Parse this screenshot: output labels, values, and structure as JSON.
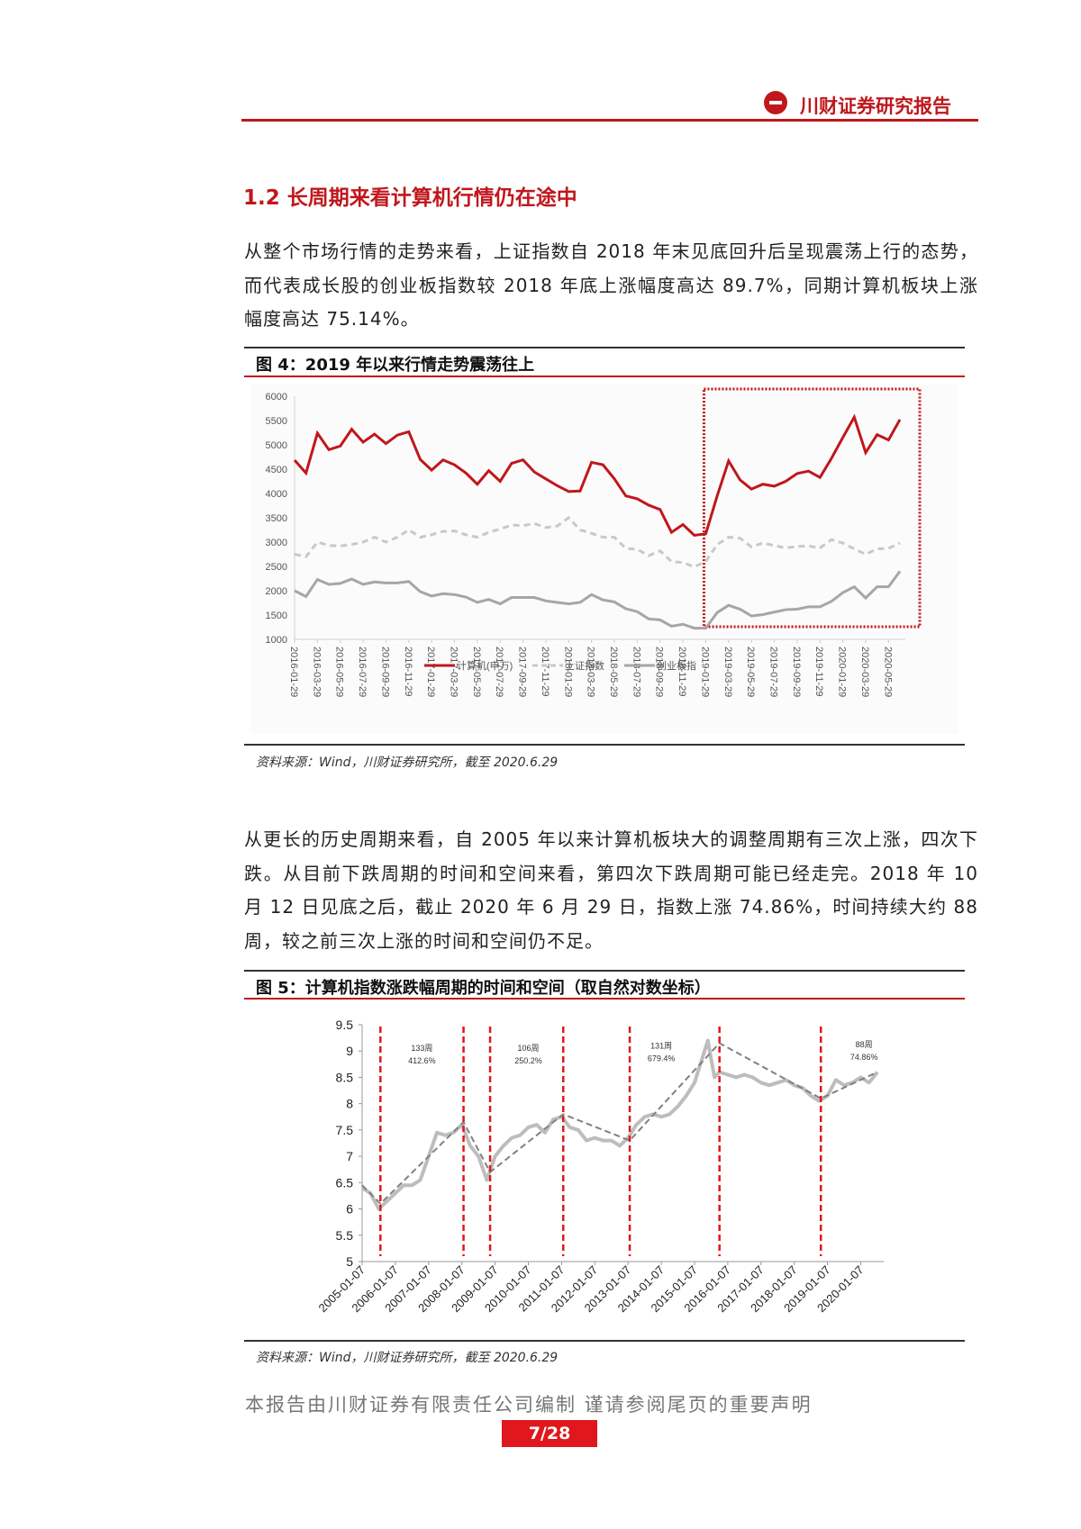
{
  "header": {
    "brand": "川财证券研究报告",
    "logo": "chuancai-logo"
  },
  "section_title": "1.2  长周期来看计算机行情仍在途中",
  "paragraph1": "从整个市场行情的走势来看，上证指数自 2018 年末见底回升后呈现震荡上行的态势，而代表成长股的创业板指数较 2018 年底上涨幅度高达 89.7%，同期计算机板块上涨幅度高达 75.14%。",
  "figure4": {
    "title": "图 4：2019 年以来行情走势震荡往上",
    "source": "资料来源：Wind，川财证券研究所，截至 2020.6.29"
  },
  "paragraph2": "从更长的历史周期来看，自 2005 年以来计算机板块大的调整周期有三次上涨，四次下跌。从目前下跌周期的时间和空间来看，第四次下跌周期可能已经走完。2018 年 10 月 12 日见底之后，截止 2020 年 6 月 29 日，指数上涨 74.86%，时间持续大约 88 周，较之前三次上涨的时间和空间仍不足。",
  "figure5": {
    "title": "图 5：计算机指数涨跌幅周期的时间和空间（取自然对数坐标）",
    "source": "资料来源：Wind，川财证券研究所，截至 2020.6.29"
  },
  "footer": {
    "disclaimer": "本报告由川财证券有限责任公司编制  谨请参阅尾页的重要声明",
    "page": "7/28"
  },
  "chart_data": [
    {
      "type": "line",
      "ylim": [
        1000,
        6000
      ],
      "yticks": [
        "1000",
        "1500",
        "2000",
        "2500",
        "3000",
        "3500",
        "4000",
        "4500",
        "5000",
        "5500",
        "6000"
      ],
      "xticks": [
        "2016-01-29",
        "2016-03-29",
        "2016-05-29",
        "2016-07-29",
        "2016-09-29",
        "2016-11-29",
        "2017-01-29",
        "2017-03-29",
        "2017-05-29",
        "2017-07-29",
        "2017-09-29",
        "2017-11-29",
        "2018-01-29",
        "2018-03-29",
        "2018-05-29",
        "2018-07-29",
        "2018-09-29",
        "2018-11-29",
        "2019-01-29",
        "2019-03-29",
        "2019-05-29",
        "2019-07-29",
        "2019-09-29",
        "2019-11-29",
        "2020-01-29",
        "2020-03-29",
        "2020-05-29"
      ],
      "x_start": "2016-01",
      "x_end": "2020-06",
      "frequency": "monthly",
      "grid": false,
      "legend": "bottom",
      "highlight_box": {
        "from": "2019-01",
        "to": "2020-06",
        "color": "#c0171c"
      },
      "series": [
        {
          "name": "计算机(申万)",
          "color": "#c0171c",
          "style": "solid",
          "values": [
            4685,
            4420,
            5240,
            4900,
            4975,
            5320,
            5055,
            5220,
            5025,
            5200,
            5270,
            4700,
            4480,
            4690,
            4590,
            4420,
            4190,
            4470,
            4250,
            4620,
            4690,
            4440,
            4300,
            4160,
            4040,
            4050,
            4640,
            4590,
            4300,
            3950,
            3890,
            3760,
            3670,
            3200,
            3360,
            3140,
            3170,
            3950,
            4670,
            4280,
            4090,
            4190,
            4150,
            4250,
            4410,
            4460,
            4330,
            4720,
            5150,
            5570,
            4840,
            5210,
            5100,
            5520
          ]
        },
        {
          "name": "上证指数",
          "color": "#c8c8c8",
          "style": "dashed",
          "values": [
            2750,
            2700,
            3000,
            2930,
            2920,
            2950,
            3000,
            3100,
            3000,
            3100,
            3250,
            3100,
            3150,
            3220,
            3230,
            3150,
            3100,
            3200,
            3270,
            3350,
            3340,
            3380,
            3300,
            3330,
            3500,
            3250,
            3180,
            3100,
            3100,
            2870,
            2850,
            2720,
            2820,
            2600,
            2580,
            2490,
            2600,
            2950,
            3100,
            3080,
            2900,
            2980,
            2930,
            2880,
            2910,
            2920,
            2880,
            3050,
            2980,
            2860,
            2750,
            2860,
            2870,
            2980
          ]
        },
        {
          "name": "创业板指",
          "color": "#a6a6a6",
          "style": "solid",
          "values": [
            2000,
            1880,
            2230,
            2130,
            2150,
            2240,
            2130,
            2180,
            2160,
            2160,
            2190,
            1980,
            1890,
            1940,
            1920,
            1870,
            1760,
            1820,
            1730,
            1860,
            1860,
            1860,
            1790,
            1760,
            1730,
            1760,
            1920,
            1810,
            1770,
            1630,
            1570,
            1420,
            1400,
            1270,
            1310,
            1230,
            1230,
            1550,
            1700,
            1620,
            1480,
            1510,
            1560,
            1610,
            1620,
            1670,
            1670,
            1780,
            1960,
            2080,
            1850,
            2080,
            2080,
            2400
          ]
        }
      ]
    },
    {
      "type": "line",
      "ylim": [
        5,
        9.5
      ],
      "yticks": [
        "5",
        "5.5",
        "6",
        "6.5",
        "7",
        "7.5",
        "8",
        "8.5",
        "9",
        "9.5"
      ],
      "xticks": [
        "2005-01-07",
        "2006-01-07",
        "2007-01-07",
        "2008-01-07",
        "2009-01-07",
        "2010-01-07",
        "2011-01-07",
        "2012-01-07",
        "2013-01-07",
        "2014-01-07",
        "2015-01-07",
        "2016-01-07",
        "2017-01-07",
        "2018-01-07",
        "2019-01-07",
        "2020-01-07"
      ],
      "grid": false,
      "series": [
        {
          "color": "#bdbdbd",
          "style": "solid",
          "x": [
            2005.0,
            2005.25,
            2005.5,
            2005.75,
            2006.0,
            2006.25,
            2006.5,
            2006.75,
            2007.0,
            2007.25,
            2007.5,
            2007.75,
            2008.0,
            2008.25,
            2008.5,
            2008.75,
            2009.0,
            2009.25,
            2009.5,
            2009.75,
            2010.0,
            2010.25,
            2010.5,
            2010.75,
            2011.0,
            2011.25,
            2011.5,
            2011.75,
            2012.0,
            2012.25,
            2012.5,
            2012.75,
            2013.0,
            2013.25,
            2013.5,
            2013.75,
            2014.0,
            2014.25,
            2014.5,
            2014.75,
            2015.0,
            2015.25,
            2015.4,
            2015.6,
            2015.75,
            2016.0,
            2016.25,
            2016.5,
            2016.75,
            2017.0,
            2017.25,
            2017.5,
            2017.75,
            2018.0,
            2018.25,
            2018.5,
            2018.75,
            2019.0,
            2019.25,
            2019.5,
            2019.75,
            2020.0,
            2020.25,
            2020.5
          ],
          "values": [
            6.4,
            6.3,
            6.0,
            6.15,
            6.3,
            6.45,
            6.45,
            6.55,
            7.0,
            7.45,
            7.4,
            7.45,
            7.6,
            7.2,
            7.0,
            6.55,
            7.0,
            7.2,
            7.35,
            7.4,
            7.55,
            7.6,
            7.45,
            7.7,
            7.75,
            7.55,
            7.5,
            7.3,
            7.35,
            7.3,
            7.3,
            7.2,
            7.35,
            7.6,
            7.75,
            7.8,
            7.75,
            7.8,
            7.95,
            8.15,
            8.4,
            8.9,
            9.2,
            8.5,
            8.6,
            8.55,
            8.5,
            8.55,
            8.5,
            8.4,
            8.35,
            8.4,
            8.45,
            8.35,
            8.3,
            8.15,
            8.05,
            8.15,
            8.45,
            8.35,
            8.4,
            8.5,
            8.4,
            8.6
          ]
        },
        {
          "color": "#808080",
          "style": "dashed",
          "x": [
            2005.0,
            2005.55,
            2008.05,
            2008.85,
            2011.05,
            2013.05,
            2015.75,
            2018.8,
            2020.5
          ],
          "values": [
            6.45,
            6.1,
            7.65,
            6.7,
            7.8,
            7.3,
            9.15,
            8.1,
            8.6
          ]
        }
      ],
      "cycle_lines": {
        "color": "#e0171c",
        "x": [
          2005.55,
          2008.05,
          2008.85,
          2011.05,
          2013.05,
          2015.75,
          2018.8
        ]
      },
      "annotations": [
        {
          "x": 2006.8,
          "y": 9.0,
          "lines": [
            "133周",
            "412.6%"
          ]
        },
        {
          "x": 2010.0,
          "y": 9.0,
          "lines": [
            "106周",
            "250.2%"
          ]
        },
        {
          "x": 2014.0,
          "y": 9.05,
          "lines": [
            "131周",
            "679.4%"
          ]
        },
        {
          "x": 2020.1,
          "y": 9.07,
          "lines": [
            "88周",
            "74.86%"
          ]
        }
      ]
    }
  ]
}
